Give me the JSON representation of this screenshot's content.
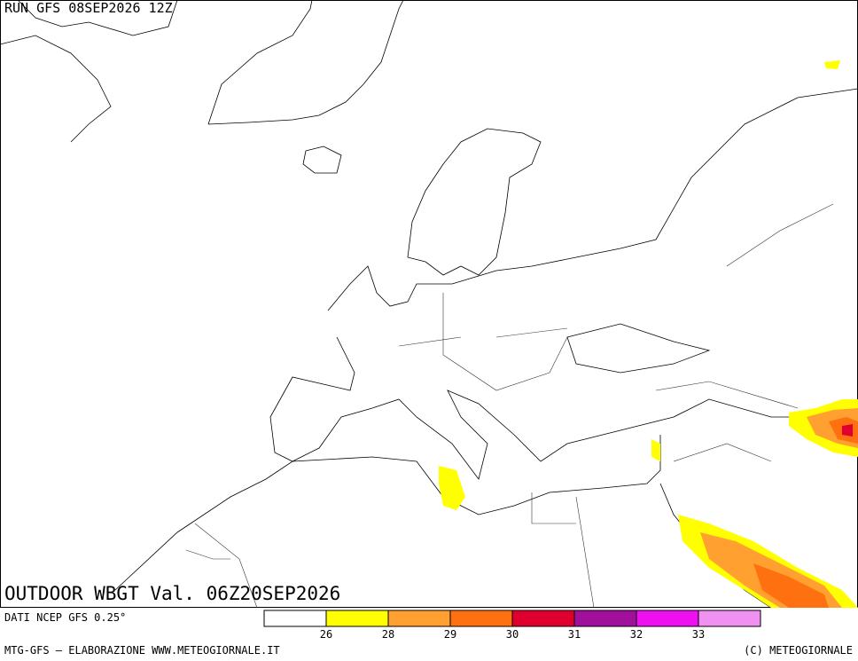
{
  "header": {
    "run": "RUN GFS 08SEP2026 12Z",
    "title": "OUTDOOR WBGT Val. 06Z20SEP2026",
    "source": "DATI NCEP GFS 0.25°"
  },
  "legend": {
    "colors": [
      "#ffffff",
      "#ffff00",
      "#ffa030",
      "#ff7010",
      "#e00030",
      "#a0109a",
      "#ee10ee",
      "#f090f0"
    ],
    "labels": [
      "26",
      "28",
      "29",
      "30",
      "31",
      "32",
      "33"
    ]
  },
  "footer": {
    "left": "MTG-GFS – ELABORAZIONE WWW.METEOGIORNALE.IT",
    "right": "(C) METEOGIORNALE"
  }
}
